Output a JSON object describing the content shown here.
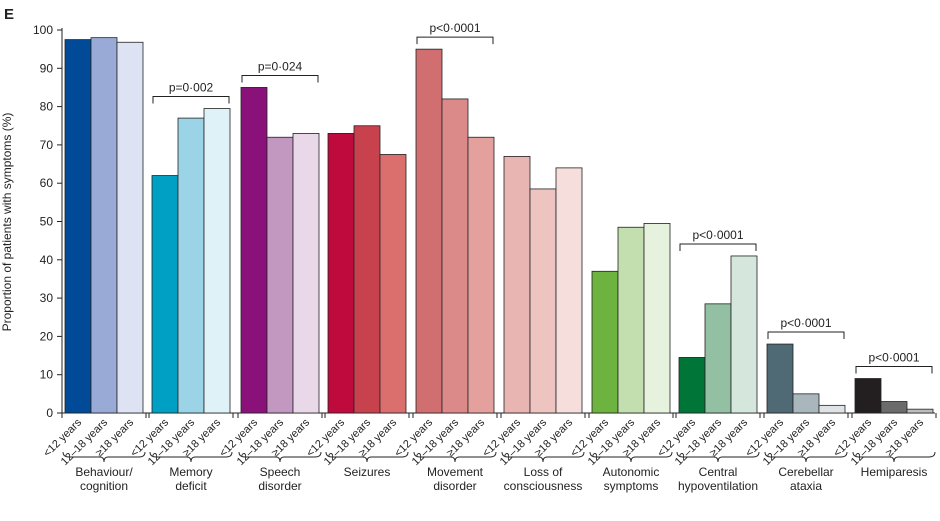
{
  "chart_data": {
    "type": "bar",
    "panel_label": "E",
    "ylabel": "Proportion of patients with symptoms (%)",
    "ylim": [
      0,
      100
    ],
    "yticks": [
      "0",
      "10",
      "20",
      "30",
      "40",
      "50",
      "60",
      "70",
      "80",
      "90",
      "100"
    ],
    "grid": false,
    "age_groups": [
      "<12 years",
      "12–18 years",
      "≥18 years"
    ],
    "groups": [
      {
        "label": [
          "Behaviour/",
          "cognition"
        ],
        "values": [
          97.5,
          98,
          96.8
        ],
        "colors": [
          "#004a97",
          "#9aaad6",
          "#dde3f3"
        ],
        "pvalue": ""
      },
      {
        "label": [
          "Memory",
          "deficit"
        ],
        "values": [
          62,
          77,
          79.5
        ],
        "colors": [
          "#009fc4",
          "#9cd4e7",
          "#dff2f7"
        ],
        "pvalue": "p=0·002"
      },
      {
        "label": [
          "Speech",
          "disorder"
        ],
        "values": [
          85,
          72,
          73
        ],
        "colors": [
          "#8a1179",
          "#c398c0",
          "#e9d9e8"
        ],
        "pvalue": "p=0·024"
      },
      {
        "label": [
          "Seizures"
        ],
        "values": [
          73,
          75,
          67.5
        ],
        "colors": [
          "#be0a3c",
          "#c8424e",
          "#db6f6e"
        ],
        "pvalue": ""
      },
      {
        "label": [
          "Movement",
          "disorder"
        ],
        "values": [
          95,
          82,
          72
        ],
        "colors": [
          "#d16f70",
          "#dc8a89",
          "#e4a09d"
        ],
        "pvalue": "p<0·0001"
      },
      {
        "label": [
          "Loss of",
          "consciousness"
        ],
        "values": [
          67,
          58.5,
          64
        ],
        "colors": [
          "#e8b5b2",
          "#eec4c1",
          "#f6dedd"
        ],
        "pvalue": ""
      },
      {
        "label": [
          "Autonomic",
          "symptoms"
        ],
        "values": [
          37,
          48.5,
          49.5
        ],
        "colors": [
          "#6db33f",
          "#c3deaf",
          "#e6f2dd"
        ],
        "pvalue": ""
      },
      {
        "label": [
          "Central",
          "hypoventilation"
        ],
        "values": [
          14.5,
          28.5,
          41
        ],
        "colors": [
          "#007538",
          "#93bfa3",
          "#d5e7dd"
        ],
        "pvalue": "p<0·0001"
      },
      {
        "label": [
          "Cerebellar",
          "ataxia"
        ],
        "values": [
          18,
          5,
          2
        ],
        "colors": [
          "#4f6975",
          "#a9b6bc",
          "#dfe3e5"
        ],
        "pvalue": "p<0·0001"
      },
      {
        "label": [
          "Hemiparesis"
        ],
        "values": [
          9,
          3,
          1
        ],
        "colors": [
          "#231f20",
          "#6b6b6b",
          "#bdbdbd"
        ],
        "pvalue": "p<0·0001"
      }
    ]
  }
}
